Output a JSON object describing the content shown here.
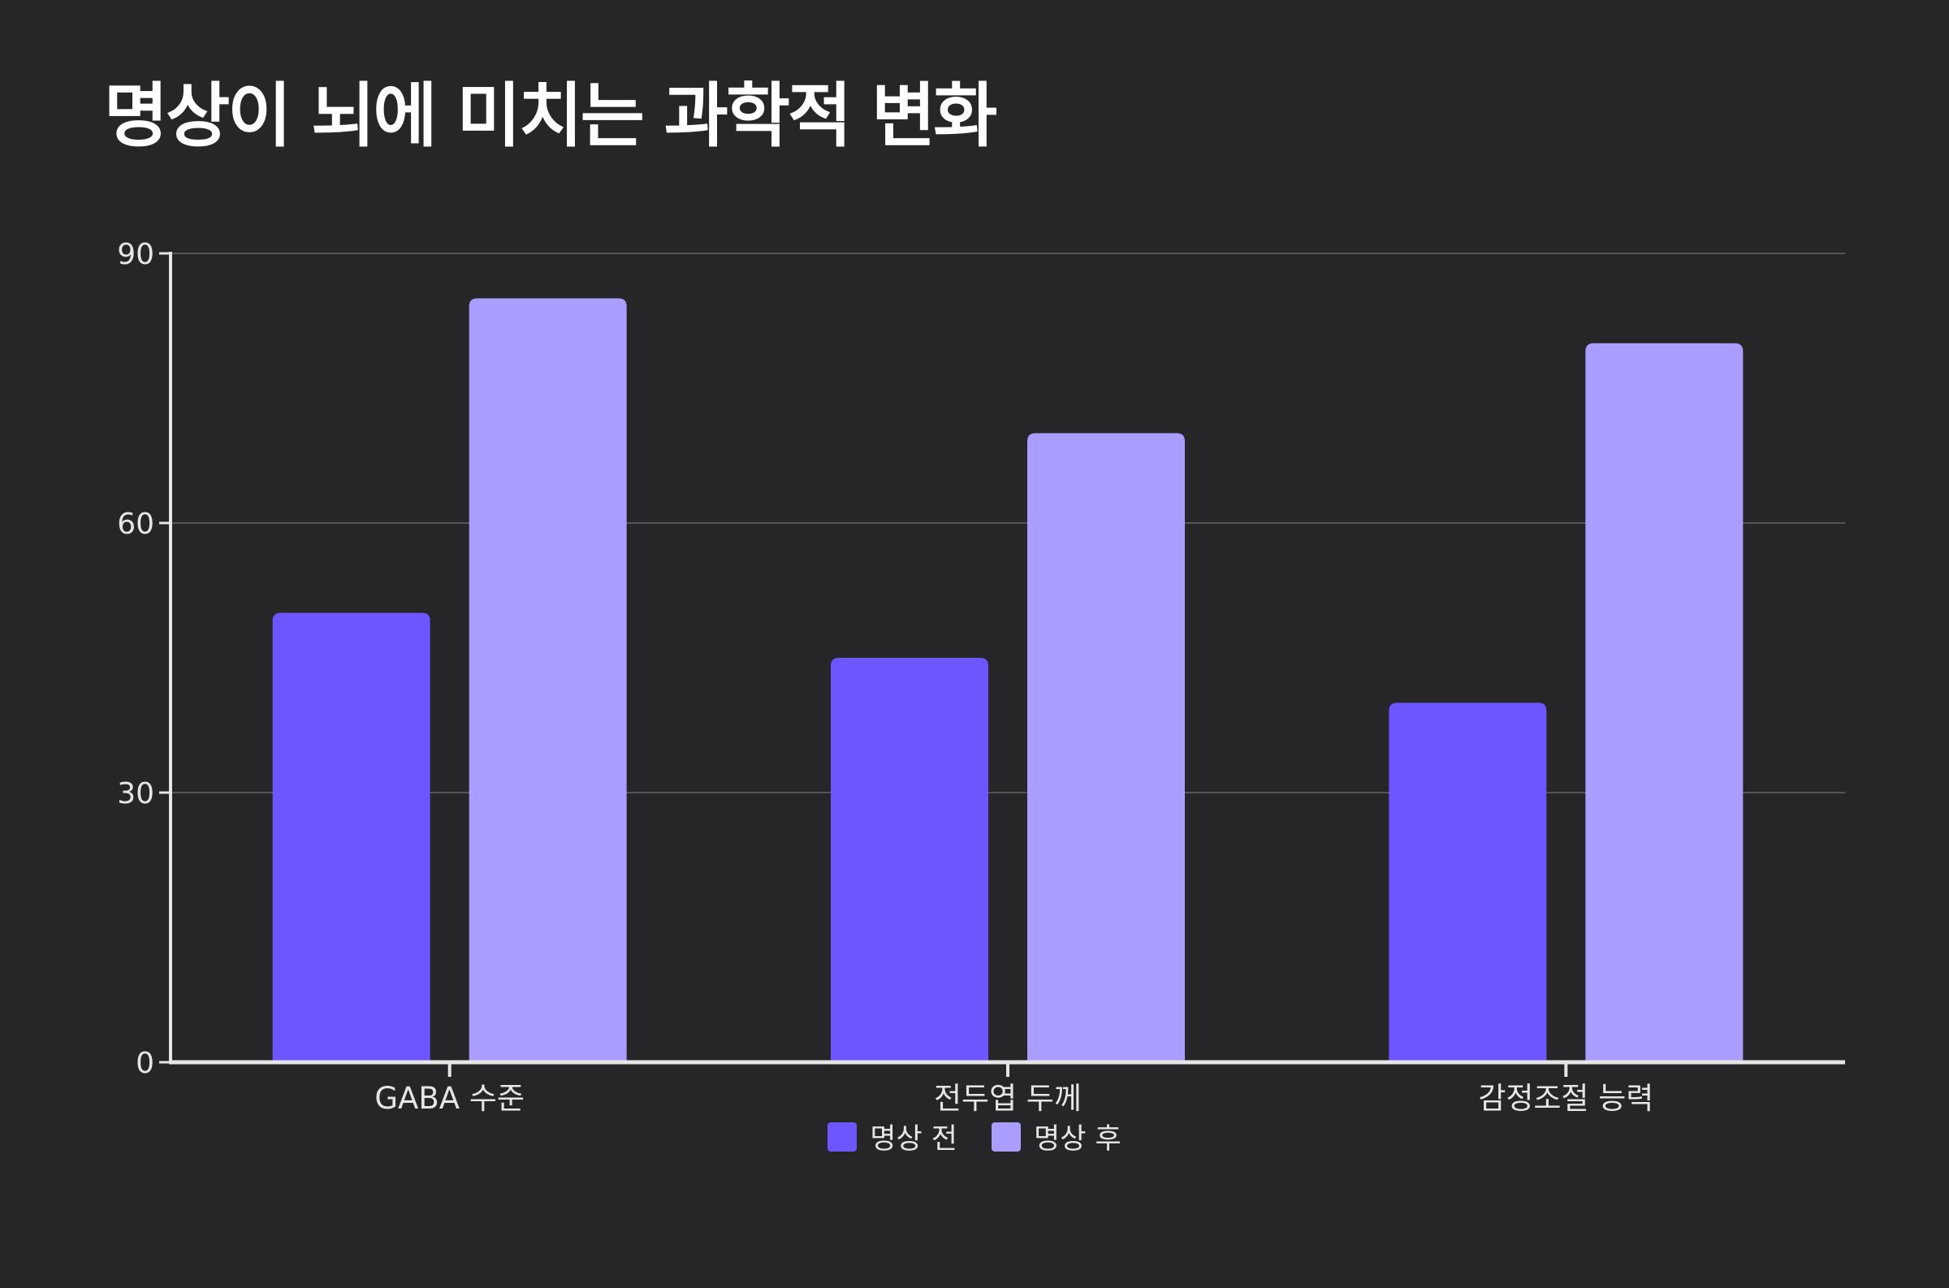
{
  "chart_data": {
    "type": "bar",
    "title": "명상이 뇌에 미치는 과학적 변화",
    "categories": [
      "GABA 수준",
      "전두엽 두께",
      "감정조절 능력"
    ],
    "series": [
      {
        "name": "명상 전",
        "values": [
          50,
          45,
          40
        ],
        "color": "#6c56ff"
      },
      {
        "name": "명상 후",
        "values": [
          85,
          70,
          80
        ],
        "color": "#a99dfe"
      }
    ],
    "ylim": [
      0,
      90
    ],
    "yticks": [
      0,
      30,
      60,
      90
    ],
    "grid": true,
    "legend_position": "bottom-center",
    "background_color": "#262527",
    "text_color": "#e6e6e6",
    "axis_color": "#e6e6e6",
    "grid_color": "#555555"
  }
}
